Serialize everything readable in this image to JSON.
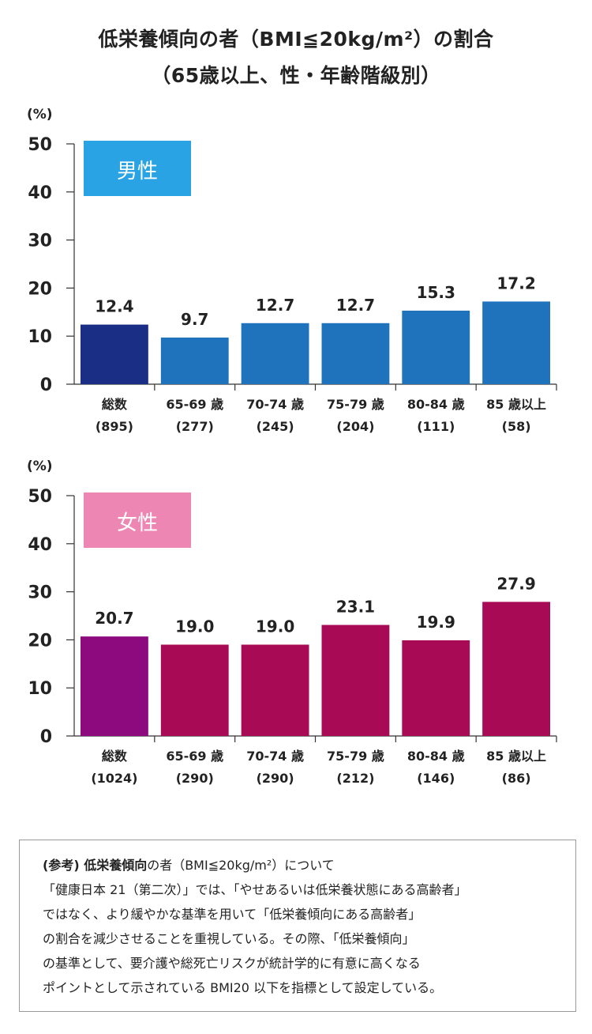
{
  "title": {
    "line1": "低栄養傾向の者（BMI≦20kg/m²）の割合",
    "line2": "（65歳以上、性・年齢階級別）"
  },
  "chart_data": [
    {
      "type": "bar",
      "panel": "男性",
      "yunit": "(%)",
      "ylim": [
        0,
        50
      ],
      "yticks": [
        0,
        10,
        20,
        30,
        40,
        50
      ],
      "categories": [
        "総数",
        "65-69 歳",
        "70-74 歳",
        "75-79 歳",
        "80-84 歳",
        "85 歳以上"
      ],
      "counts": [
        "(895)",
        "(277)",
        "(245)",
        "(204)",
        "(111)",
        "(58)"
      ],
      "values": [
        12.4,
        9.7,
        12.7,
        12.7,
        15.3,
        17.2
      ],
      "value_labels": [
        "12.4",
        "9.7",
        "12.7",
        "12.7",
        "15.3",
        "17.2"
      ],
      "colors": [
        "#1a2e85",
        "#1f73bd",
        "#1f73bd",
        "#1f73bd",
        "#1f73bd",
        "#1f73bd"
      ],
      "label_color": "#29a3e4"
    },
    {
      "type": "bar",
      "panel": "女性",
      "yunit": "(%)",
      "ylim": [
        0,
        50
      ],
      "yticks": [
        0,
        10,
        20,
        30,
        40,
        50
      ],
      "categories": [
        "総数",
        "65-69 歳",
        "70-74 歳",
        "75-79 歳",
        "80-84 歳",
        "85 歳以上"
      ],
      "counts": [
        "(1024)",
        "(290)",
        "(290)",
        "(212)",
        "(146)",
        "(86)"
      ],
      "values": [
        20.7,
        19.0,
        19.0,
        23.1,
        19.9,
        27.9
      ],
      "value_labels": [
        "20.7",
        "19.0",
        "19.0",
        "23.1",
        "19.9",
        "27.9"
      ],
      "colors": [
        "#8c0a7e",
        "#a80a55",
        "#a80a55",
        "#a80a55",
        "#a80a55",
        "#a80a55"
      ],
      "label_color": "#ee86b3"
    }
  ],
  "note": {
    "head_bold": "(参考) 低栄養傾向",
    "head_rest": "の者（BMI≦20kg/m²）について",
    "lines": [
      "「健康日本 21（第二次）」では、「やせあるいは低栄養状態にある高齢者」",
      "ではなく、より緩やかな基準を用いて「低栄養傾向にある高齢者」",
      "の割合を減少させることを重視している。その際、「低栄養傾向」",
      "の基準として、要介護や総死亡リスクが統計学的に有意に高くなる",
      "ポイントとして示されている BMI20 以下を指標として設定している。"
    ]
  }
}
